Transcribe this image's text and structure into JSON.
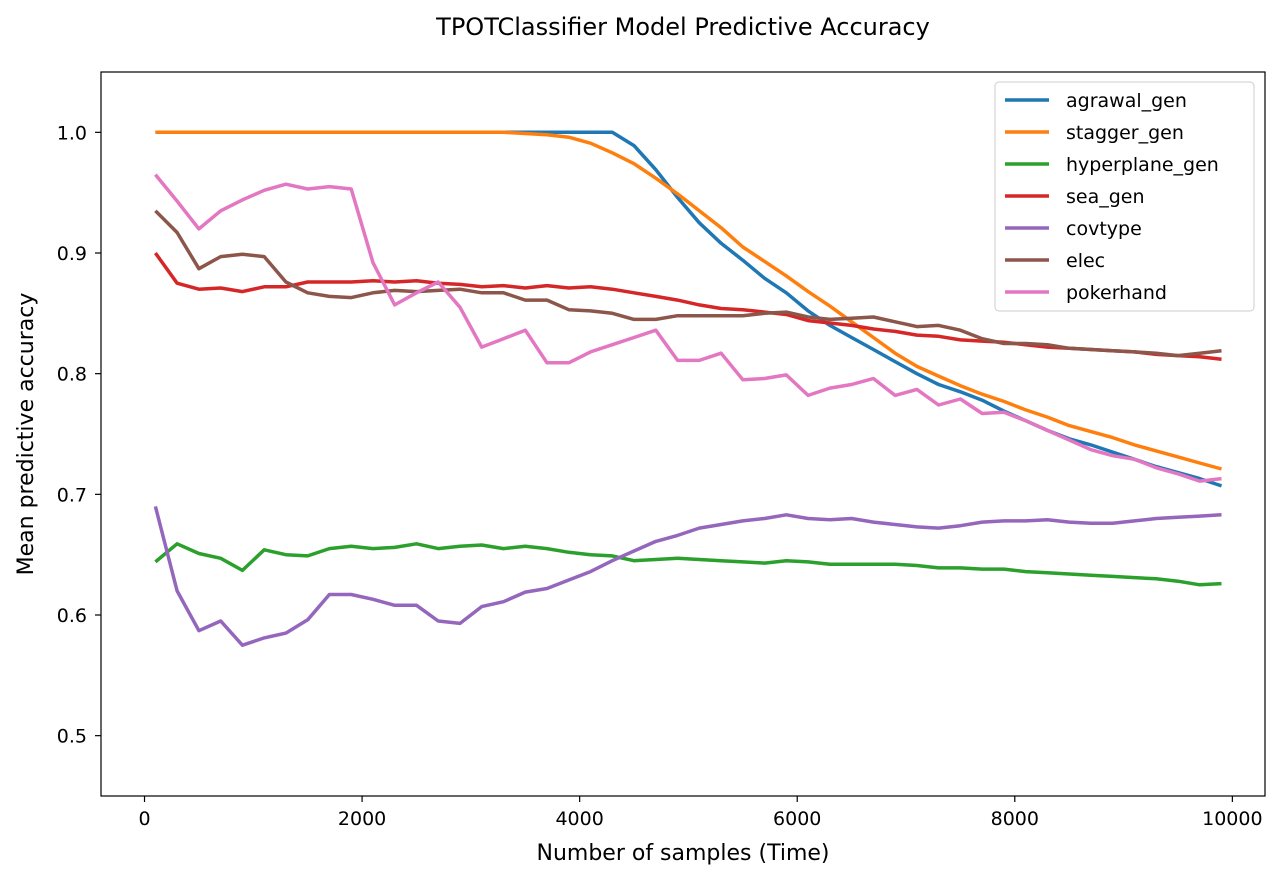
{
  "chart_data": {
    "type": "line",
    "title": "TPOTClassifier Model Predictive Accuracy",
    "xlabel": "Number of samples (Time)",
    "ylabel": "Mean predictive accuracy",
    "xlim": [
      -400,
      10300
    ],
    "ylim": [
      0.45,
      1.05
    ],
    "xticks": [
      0,
      2000,
      4000,
      6000,
      8000,
      10000
    ],
    "xtick_labels": [
      "0",
      "2000",
      "4000",
      "6000",
      "8000",
      "10000"
    ],
    "yticks": [
      0.5,
      0.6,
      0.7,
      0.8,
      0.9,
      1.0
    ],
    "ytick_labels": [
      "0.5",
      "0.6",
      "0.7",
      "0.8",
      "0.9",
      "1.0"
    ],
    "grid": false,
    "legend_position": "top-right",
    "x": [
      100,
      300,
      500,
      700,
      900,
      1100,
      1300,
      1500,
      1700,
      1900,
      2100,
      2300,
      2500,
      2700,
      2900,
      3100,
      3300,
      3500,
      3700,
      3900,
      4100,
      4300,
      4500,
      4700,
      4900,
      5100,
      5300,
      5500,
      5700,
      5900,
      6100,
      6300,
      6500,
      6700,
      6900,
      7100,
      7300,
      7500,
      7700,
      7900,
      8100,
      8300,
      8500,
      8700,
      8900,
      9100,
      9300,
      9500,
      9700,
      9900
    ],
    "series": [
      {
        "name": "agrawal_gen",
        "color": "#1f77b4",
        "values": [
          1.0,
          1.0,
          1.0,
          1.0,
          1.0,
          1.0,
          1.0,
          1.0,
          1.0,
          1.0,
          1.0,
          1.0,
          1.0,
          1.0,
          1.0,
          1.0,
          1.0,
          1.0,
          1.0,
          1.0,
          1.0,
          1.0,
          0.989,
          0.969,
          0.946,
          0.925,
          0.908,
          0.894,
          0.879,
          0.867,
          0.852,
          0.84,
          0.83,
          0.82,
          0.81,
          0.8,
          0.791,
          0.785,
          0.778,
          0.769,
          0.761,
          0.753,
          0.746,
          0.741,
          0.735,
          0.729,
          0.723,
          0.718,
          0.713,
          0.707
        ]
      },
      {
        "name": "stagger_gen",
        "color": "#ff7f0e",
        "values": [
          1.0,
          1.0,
          1.0,
          1.0,
          1.0,
          1.0,
          1.0,
          1.0,
          1.0,
          1.0,
          1.0,
          1.0,
          1.0,
          1.0,
          1.0,
          1.0,
          1.0,
          0.999,
          0.998,
          0.996,
          0.991,
          0.983,
          0.974,
          0.962,
          0.949,
          0.935,
          0.921,
          0.905,
          0.893,
          0.881,
          0.868,
          0.856,
          0.843,
          0.83,
          0.817,
          0.806,
          0.798,
          0.79,
          0.783,
          0.777,
          0.77,
          0.764,
          0.757,
          0.752,
          0.747,
          0.741,
          0.736,
          0.731,
          0.726,
          0.721
        ]
      },
      {
        "name": "hyperplane_gen",
        "color": "#2ca02c",
        "values": [
          0.644,
          0.659,
          0.651,
          0.647,
          0.637,
          0.654,
          0.65,
          0.649,
          0.655,
          0.657,
          0.655,
          0.656,
          0.659,
          0.655,
          0.657,
          0.658,
          0.655,
          0.657,
          0.655,
          0.652,
          0.65,
          0.649,
          0.645,
          0.646,
          0.647,
          0.646,
          0.645,
          0.644,
          0.643,
          0.645,
          0.644,
          0.642,
          0.642,
          0.642,
          0.642,
          0.641,
          0.639,
          0.639,
          0.638,
          0.638,
          0.636,
          0.635,
          0.634,
          0.633,
          0.632,
          0.631,
          0.63,
          0.628,
          0.625,
          0.626
        ]
      },
      {
        "name": "sea_gen",
        "color": "#d62728",
        "values": [
          0.9,
          0.875,
          0.87,
          0.871,
          0.868,
          0.872,
          0.872,
          0.876,
          0.876,
          0.876,
          0.877,
          0.876,
          0.877,
          0.875,
          0.874,
          0.872,
          0.873,
          0.871,
          0.873,
          0.871,
          0.872,
          0.87,
          0.867,
          0.864,
          0.861,
          0.857,
          0.854,
          0.853,
          0.851,
          0.849,
          0.844,
          0.842,
          0.84,
          0.837,
          0.835,
          0.832,
          0.831,
          0.828,
          0.827,
          0.826,
          0.824,
          0.822,
          0.821,
          0.82,
          0.819,
          0.818,
          0.816,
          0.815,
          0.814,
          0.812
        ]
      },
      {
        "name": "covtype",
        "color": "#9467bd",
        "values": [
          0.69,
          0.62,
          0.587,
          0.595,
          0.575,
          0.581,
          0.585,
          0.596,
          0.617,
          0.617,
          0.613,
          0.608,
          0.608,
          0.595,
          0.593,
          0.607,
          0.611,
          0.619,
          0.622,
          0.629,
          0.636,
          0.645,
          0.653,
          0.661,
          0.666,
          0.672,
          0.675,
          0.678,
          0.68,
          0.683,
          0.68,
          0.679,
          0.68,
          0.677,
          0.675,
          0.673,
          0.672,
          0.674,
          0.677,
          0.678,
          0.678,
          0.679,
          0.677,
          0.676,
          0.676,
          0.678,
          0.68,
          0.681,
          0.682,
          0.683
        ]
      },
      {
        "name": "elec",
        "color": "#8c564b",
        "values": [
          0.935,
          0.917,
          0.887,
          0.897,
          0.899,
          0.897,
          0.876,
          0.867,
          0.864,
          0.863,
          0.867,
          0.869,
          0.868,
          0.869,
          0.87,
          0.867,
          0.867,
          0.861,
          0.861,
          0.853,
          0.852,
          0.85,
          0.845,
          0.845,
          0.848,
          0.848,
          0.848,
          0.848,
          0.85,
          0.851,
          0.847,
          0.845,
          0.846,
          0.847,
          0.843,
          0.839,
          0.84,
          0.836,
          0.829,
          0.825,
          0.825,
          0.824,
          0.821,
          0.82,
          0.819,
          0.818,
          0.817,
          0.815,
          0.817,
          0.819
        ]
      },
      {
        "name": "pokerhand",
        "color": "#e377c2",
        "values": [
          0.965,
          0.943,
          0.92,
          0.935,
          0.944,
          0.952,
          0.957,
          0.953,
          0.955,
          0.953,
          0.892,
          0.857,
          0.867,
          0.876,
          0.855,
          0.822,
          0.829,
          0.836,
          0.809,
          0.809,
          0.818,
          0.824,
          0.83,
          0.836,
          0.811,
          0.811,
          0.817,
          0.795,
          0.796,
          0.799,
          0.782,
          0.788,
          0.791,
          0.796,
          0.782,
          0.787,
          0.774,
          0.779,
          0.767,
          0.768,
          0.761,
          0.753,
          0.745,
          0.737,
          0.732,
          0.729,
          0.722,
          0.717,
          0.711,
          0.713
        ]
      }
    ]
  }
}
